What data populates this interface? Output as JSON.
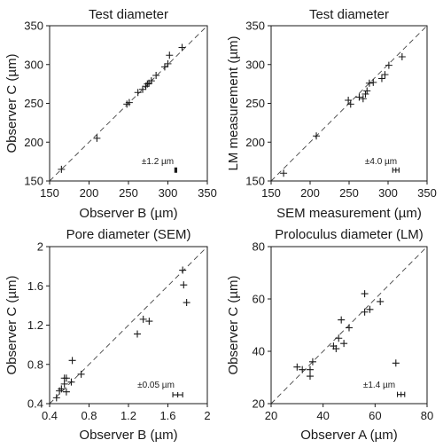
{
  "chart_data": [
    {
      "type": "scatter",
      "title": "Test diameter",
      "xlabel": "Observer B (µm)",
      "ylabel": "Observer C (µm)",
      "xlim": [
        150,
        350
      ],
      "ylim": [
        150,
        350
      ],
      "xticks": [
        "150",
        "200",
        "250",
        "300",
        "350"
      ],
      "yticks": [
        "150",
        "200",
        "250",
        "300",
        "350"
      ],
      "grid": false,
      "reference_line": "1:1 dashed",
      "error_annotation": "±1.2 µm",
      "error_bar": {
        "x": 310,
        "y": 164,
        "half_width": 1.2
      },
      "points": [
        {
          "x": 165,
          "y": 165
        },
        {
          "x": 210,
          "y": 205
        },
        {
          "x": 248,
          "y": 249
        },
        {
          "x": 251,
          "y": 251
        },
        {
          "x": 262,
          "y": 264
        },
        {
          "x": 268,
          "y": 268
        },
        {
          "x": 272,
          "y": 272
        },
        {
          "x": 274,
          "y": 275
        },
        {
          "x": 276,
          "y": 276
        },
        {
          "x": 279,
          "y": 279
        },
        {
          "x": 285,
          "y": 286
        },
        {
          "x": 296,
          "y": 297
        },
        {
          "x": 300,
          "y": 301
        },
        {
          "x": 302,
          "y": 312
        },
        {
          "x": 318,
          "y": 322
        }
      ]
    },
    {
      "type": "scatter",
      "title": "Test diameter",
      "xlabel": "SEM measurement (µm)",
      "ylabel": "LM measurement (µm)",
      "xlim": [
        150,
        350
      ],
      "ylim": [
        150,
        350
      ],
      "xticks": [
        "150",
        "200",
        "250",
        "300",
        "350"
      ],
      "yticks": [
        "150",
        "200",
        "250",
        "300",
        "350"
      ],
      "grid": false,
      "reference_line": "1:1 dashed",
      "error_annotation": "±4.0 µm",
      "error_bar": {
        "x": 310,
        "y": 164,
        "half_width": 4.0
      },
      "points": [
        {
          "x": 166,
          "y": 160
        },
        {
          "x": 208,
          "y": 208
        },
        {
          "x": 249,
          "y": 254
        },
        {
          "x": 252,
          "y": 249
        },
        {
          "x": 263,
          "y": 258
        },
        {
          "x": 268,
          "y": 256
        },
        {
          "x": 271,
          "y": 262
        },
        {
          "x": 273,
          "y": 266
        },
        {
          "x": 276,
          "y": 276
        },
        {
          "x": 281,
          "y": 277
        },
        {
          "x": 292,
          "y": 282
        },
        {
          "x": 296,
          "y": 287
        },
        {
          "x": 301,
          "y": 299
        },
        {
          "x": 318,
          "y": 310
        }
      ]
    },
    {
      "type": "scatter",
      "title": "Pore diameter (SEM)",
      "xlabel": "Observer B (µm)",
      "ylabel": "Observer C (µm)",
      "xlim": [
        0.4,
        2.0
      ],
      "ylim": [
        0.4,
        2.0
      ],
      "xticks": [
        "0.4",
        "0.8",
        "1.2",
        "1.6",
        "2"
      ],
      "yticks": [
        "0.4",
        "0.8",
        "1.2",
        "1.6",
        "2"
      ],
      "grid": false,
      "reference_line": "1:1 dashed",
      "error_annotation": "±0.05 µm",
      "error_bar": {
        "x": 1.7,
        "y": 0.49,
        "half_width": 0.05
      },
      "points": [
        {
          "x": 0.47,
          "y": 0.46
        },
        {
          "x": 0.5,
          "y": 0.53
        },
        {
          "x": 0.52,
          "y": 0.55
        },
        {
          "x": 0.55,
          "y": 0.6
        },
        {
          "x": 0.55,
          "y": 0.66
        },
        {
          "x": 0.57,
          "y": 0.52
        },
        {
          "x": 0.57,
          "y": 0.66
        },
        {
          "x": 0.62,
          "y": 0.62
        },
        {
          "x": 0.63,
          "y": 0.84
        },
        {
          "x": 0.72,
          "y": 0.7
        },
        {
          "x": 1.29,
          "y": 1.11
        },
        {
          "x": 1.35,
          "y": 1.26
        },
        {
          "x": 1.41,
          "y": 1.24
        },
        {
          "x": 1.75,
          "y": 1.76
        },
        {
          "x": 1.76,
          "y": 1.61
        },
        {
          "x": 1.79,
          "y": 1.43
        }
      ]
    },
    {
      "type": "scatter",
      "title": "Proloculus diameter (LM)",
      "xlabel": "Observer A (µm)",
      "ylabel": "Observer C (µm)",
      "xlim": [
        20,
        80
      ],
      "ylim": [
        20,
        80
      ],
      "xticks": [
        "20",
        "40",
        "60",
        "80"
      ],
      "yticks": [
        "20",
        "40",
        "60",
        "80"
      ],
      "grid": false,
      "reference_line": "1:1 dashed",
      "error_annotation": "±1.4 µm",
      "error_bar": {
        "x": 70,
        "y": 23.5,
        "half_width": 1.4
      },
      "points": [
        {
          "x": 30,
          "y": 34
        },
        {
          "x": 32,
          "y": 33
        },
        {
          "x": 35,
          "y": 33
        },
        {
          "x": 35,
          "y": 30.5
        },
        {
          "x": 36,
          "y": 36
        },
        {
          "x": 44,
          "y": 42
        },
        {
          "x": 45,
          "y": 41
        },
        {
          "x": 46,
          "y": 45
        },
        {
          "x": 47,
          "y": 52
        },
        {
          "x": 48,
          "y": 43
        },
        {
          "x": 50,
          "y": 49
        },
        {
          "x": 56,
          "y": 62
        },
        {
          "x": 56,
          "y": 55
        },
        {
          "x": 58,
          "y": 56
        },
        {
          "x": 62,
          "y": 59
        },
        {
          "x": 68,
          "y": 35.5
        }
      ]
    }
  ]
}
